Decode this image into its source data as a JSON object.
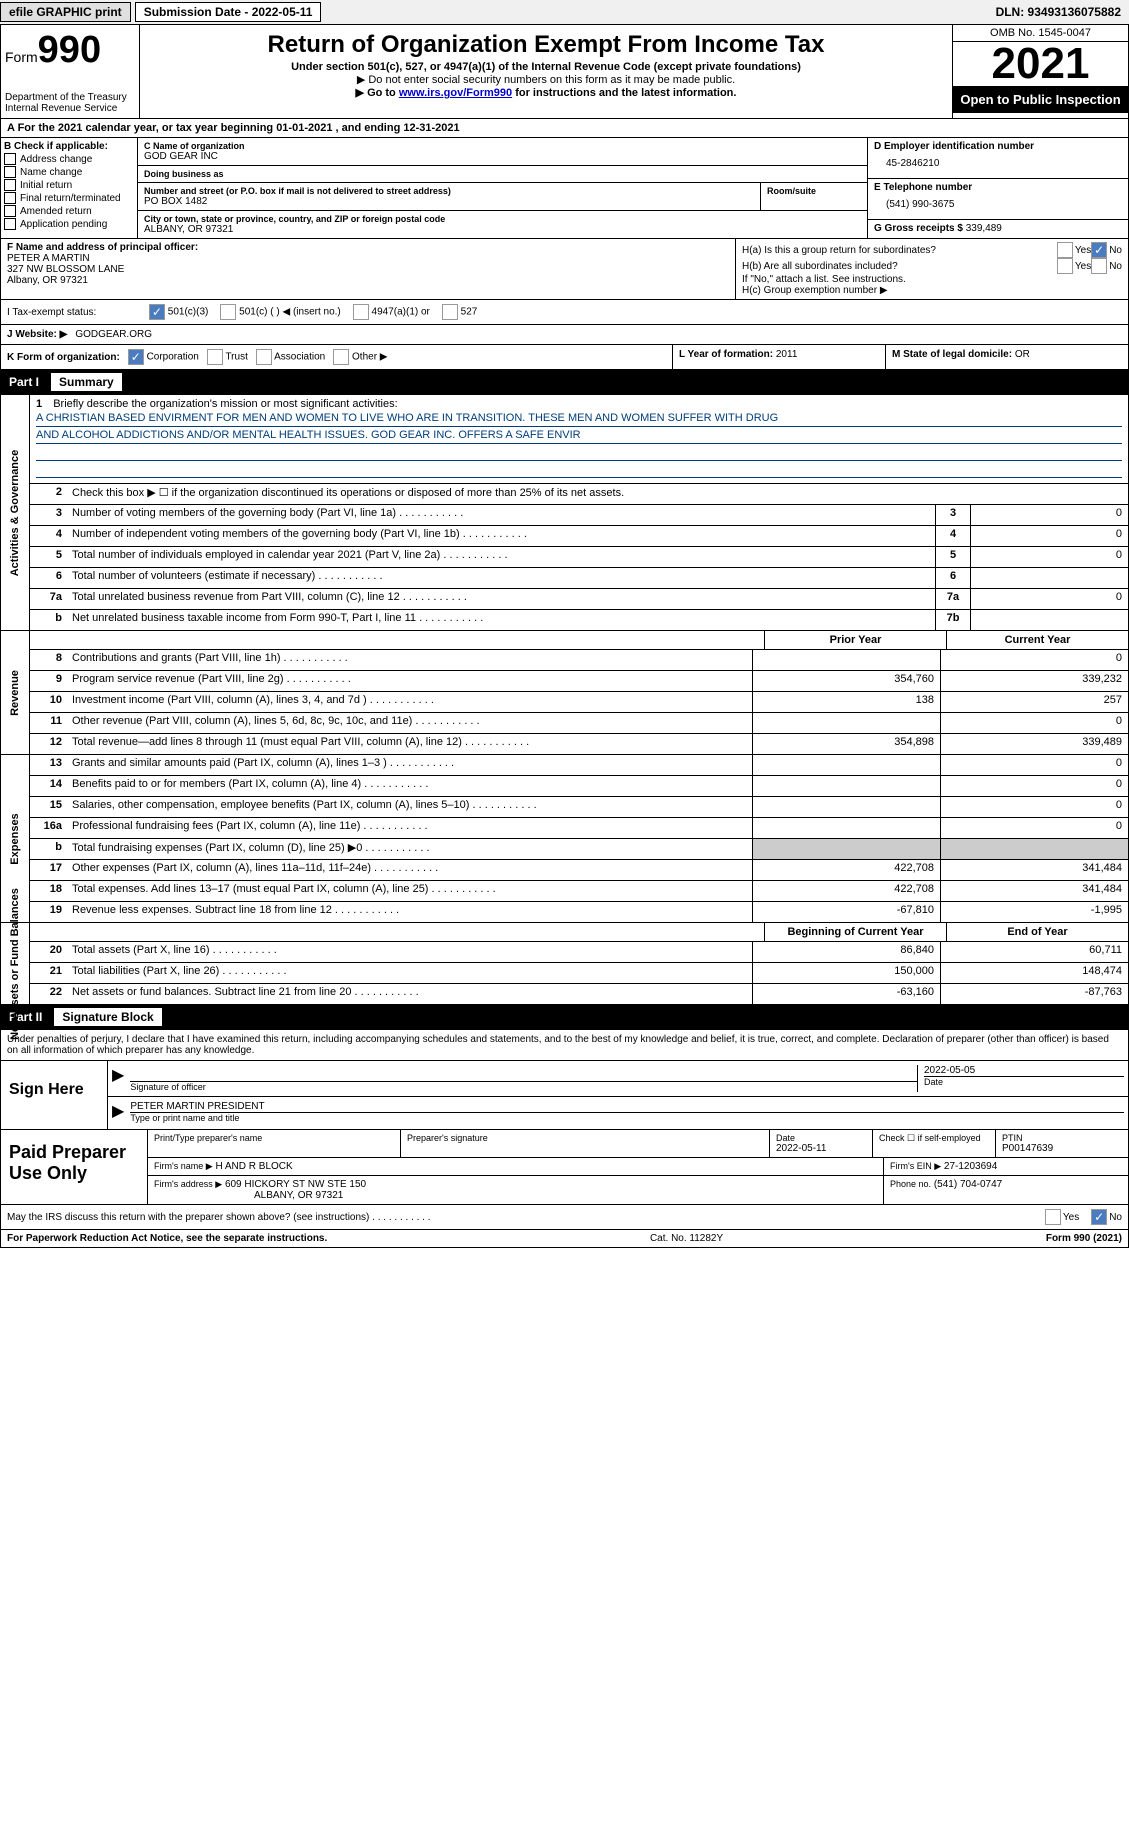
{
  "topbar": {
    "efile": "efile GRAPHIC print",
    "submission_label": "Submission Date - 2022-05-11",
    "dln_label": "DLN: 93493136075882"
  },
  "header": {
    "form_prefix": "Form",
    "form_num": "990",
    "dept": "Department of the Treasury",
    "irs": "Internal Revenue Service",
    "title": "Return of Organization Exempt From Income Tax",
    "sub1": "Under section 501(c), 527, or 4947(a)(1) of the Internal Revenue Code (except private foundations)",
    "sub2": "▶ Do not enter social security numbers on this form as it may be made public.",
    "sub3_pre": "▶ Go to ",
    "sub3_link": "www.irs.gov/Form990",
    "sub3_post": " for instructions and the latest information.",
    "omb": "OMB No. 1545-0047",
    "year": "2021",
    "open_public": "Open to Public Inspection"
  },
  "cal_year": "A For the 2021 calendar year, or tax year beginning 01-01-2021    , and ending 12-31-2021",
  "section_b": {
    "label": "B Check if applicable:",
    "opts": [
      "Address change",
      "Name change",
      "Initial return",
      "Final return/terminated",
      "Amended return",
      "Application pending"
    ]
  },
  "section_c": {
    "name_label": "C Name of organization",
    "name": "GOD GEAR INC",
    "dba_label": "Doing business as",
    "dba": "",
    "addr_label": "Number and street (or P.O. box if mail is not delivered to street address)",
    "room_label": "Room/suite",
    "addr": "PO BOX 1482",
    "city_label": "City or town, state or province, country, and ZIP or foreign postal code",
    "city": "ALBANY, OR  97321"
  },
  "section_d": {
    "ein_label": "D Employer identification number",
    "ein": "45-2846210",
    "phone_label": "E Telephone number",
    "phone": "(541) 990-3675",
    "gross_label": "G Gross receipts $",
    "gross": "339,489"
  },
  "section_f": {
    "label": "F  Name and address of principal officer:",
    "name": "PETER A MARTIN",
    "addr1": "327 NW BLOSSOM LANE",
    "addr2": "Albany, OR  97321"
  },
  "section_h": {
    "ha": "H(a)  Is this a group return for subordinates?",
    "hb": "H(b)  Are all subordinates included?",
    "hb_note": "If \"No,\" attach a list. See instructions.",
    "hc": "H(c)  Group exemption number ▶",
    "yes": "Yes",
    "no": "No"
  },
  "tax_status": {
    "label": "I  Tax-exempt status:",
    "opt1": "501(c)(3)",
    "opt2": "501(c) (  ) ◀ (insert no.)",
    "opt3": "4947(a)(1) or",
    "opt4": "527"
  },
  "website": {
    "label": "J  Website: ▶",
    "value": "GODGEAR.ORG"
  },
  "korg": {
    "label": "K Form of organization:",
    "opts": [
      "Corporation",
      "Trust",
      "Association",
      "Other ▶"
    ],
    "l_label": "L Year of formation:",
    "l_val": "2011",
    "m_label": "M State of legal domicile:",
    "m_val": "OR"
  },
  "part1": {
    "num": "Part I",
    "title": "Summary"
  },
  "mission": {
    "num": "1",
    "label": "Briefly describe the organization's mission or most significant activities:",
    "line1": "A CHRISTIAN BASED ENVIRMENT FOR MEN AND WOMEN TO LIVE WHO ARE IN TRANSITION. THESE MEN AND WOMEN SUFFER WITH DRUG",
    "line2": "AND ALCOHOL ADDICTIONS AND/OR MENTAL HEALTH ISSUES. GOD GEAR INC. OFFERS A SAFE ENVIR"
  },
  "activities": {
    "label": "Activities & Governance",
    "rows": [
      {
        "num": "2",
        "text": "Check this box ▶ ☐  if the organization discontinued its operations or disposed of more than 25% of its net assets.",
        "box": "",
        "val": ""
      },
      {
        "num": "3",
        "text": "Number of voting members of the governing body (Part VI, line 1a)",
        "box": "3",
        "val": "0"
      },
      {
        "num": "4",
        "text": "Number of independent voting members of the governing body (Part VI, line 1b)",
        "box": "4",
        "val": "0"
      },
      {
        "num": "5",
        "text": "Total number of individuals employed in calendar year 2021 (Part V, line 2a)",
        "box": "5",
        "val": "0"
      },
      {
        "num": "6",
        "text": "Total number of volunteers (estimate if necessary)",
        "box": "6",
        "val": ""
      },
      {
        "num": "7a",
        "text": "Total unrelated business revenue from Part VIII, column (C), line 12",
        "box": "7a",
        "val": "0"
      },
      {
        "num": "b",
        "text": "Net unrelated business taxable income from Form 990-T, Part I, line 11",
        "box": "7b",
        "val": ""
      }
    ]
  },
  "col_headers": {
    "prior": "Prior Year",
    "current": "Current Year",
    "begin": "Beginning of Current Year",
    "end": "End of Year"
  },
  "revenue": {
    "label": "Revenue",
    "rows": [
      {
        "num": "8",
        "text": "Contributions and grants (Part VIII, line 1h)",
        "prior": "",
        "current": "0"
      },
      {
        "num": "9",
        "text": "Program service revenue (Part VIII, line 2g)",
        "prior": "354,760",
        "current": "339,232"
      },
      {
        "num": "10",
        "text": "Investment income (Part VIII, column (A), lines 3, 4, and 7d )",
        "prior": "138",
        "current": "257"
      },
      {
        "num": "11",
        "text": "Other revenue (Part VIII, column (A), lines 5, 6d, 8c, 9c, 10c, and 11e)",
        "prior": "",
        "current": "0"
      },
      {
        "num": "12",
        "text": "Total revenue—add lines 8 through 11 (must equal Part VIII, column (A), line 12)",
        "prior": "354,898",
        "current": "339,489"
      }
    ]
  },
  "expenses": {
    "label": "Expenses",
    "rows": [
      {
        "num": "13",
        "text": "Grants and similar amounts paid (Part IX, column (A), lines 1–3 )",
        "prior": "",
        "current": "0"
      },
      {
        "num": "14",
        "text": "Benefits paid to or for members (Part IX, column (A), line 4)",
        "prior": "",
        "current": "0"
      },
      {
        "num": "15",
        "text": "Salaries, other compensation, employee benefits (Part IX, column (A), lines 5–10)",
        "prior": "",
        "current": "0"
      },
      {
        "num": "16a",
        "text": "Professional fundraising fees (Part IX, column (A), line 11e)",
        "prior": "",
        "current": "0"
      },
      {
        "num": "b",
        "text": "Total fundraising expenses (Part IX, column (D), line 25) ▶0",
        "prior": "shaded",
        "current": "shaded"
      },
      {
        "num": "17",
        "text": "Other expenses (Part IX, column (A), lines 11a–11d, 11f–24e)",
        "prior": "422,708",
        "current": "341,484"
      },
      {
        "num": "18",
        "text": "Total expenses. Add lines 13–17 (must equal Part IX, column (A), line 25)",
        "prior": "422,708",
        "current": "341,484"
      },
      {
        "num": "19",
        "text": "Revenue less expenses. Subtract line 18 from line 12",
        "prior": "-67,810",
        "current": "-1,995"
      }
    ]
  },
  "netassets": {
    "label": "Net Assets or Fund Balances",
    "rows": [
      {
        "num": "20",
        "text": "Total assets (Part X, line 16)",
        "prior": "86,840",
        "current": "60,711"
      },
      {
        "num": "21",
        "text": "Total liabilities (Part X, line 26)",
        "prior": "150,000",
        "current": "148,474"
      },
      {
        "num": "22",
        "text": "Net assets or fund balances. Subtract line 21 from line 20",
        "prior": "-63,160",
        "current": "-87,763"
      }
    ]
  },
  "part2": {
    "num": "Part II",
    "title": "Signature Block"
  },
  "penalties": "Under penalties of perjury, I declare that I have examined this return, including accompanying schedules and statements, and to the best of my knowledge and belief, it is true, correct, and complete. Declaration of preparer (other than officer) is based on all information of which preparer has any knowledge.",
  "sign": {
    "label": "Sign Here",
    "sig_of": "Signature of officer",
    "date_label": "Date",
    "date": "2022-05-05",
    "name": "PETER MARTIN  PRESIDENT",
    "name_label": "Type or print name and title"
  },
  "prep": {
    "label": "Paid Preparer Use Only",
    "print_label": "Print/Type preparer's name",
    "sig_label": "Preparer's signature",
    "date_label": "Date",
    "date": "2022-05-11",
    "check_label": "Check ☐ if self-employed",
    "ptin_label": "PTIN",
    "ptin": "P00147639",
    "firm_name_label": "Firm's name    ▶",
    "firm_name": "H AND R BLOCK",
    "firm_ein_label": "Firm's EIN ▶",
    "firm_ein": "27-1203694",
    "firm_addr_label": "Firm's address ▶",
    "firm_addr1": "609 HICKORY ST NW STE 150",
    "firm_addr2": "ALBANY, OR  97321",
    "phone_label": "Phone no.",
    "phone": "(541) 704-0747"
  },
  "discuss": "May the IRS discuss this return with the preparer shown above? (see instructions)",
  "footer": {
    "left": "For Paperwork Reduction Act Notice, see the separate instructions.",
    "mid": "Cat. No. 11282Y",
    "right": "Form 990 (2021)"
  }
}
